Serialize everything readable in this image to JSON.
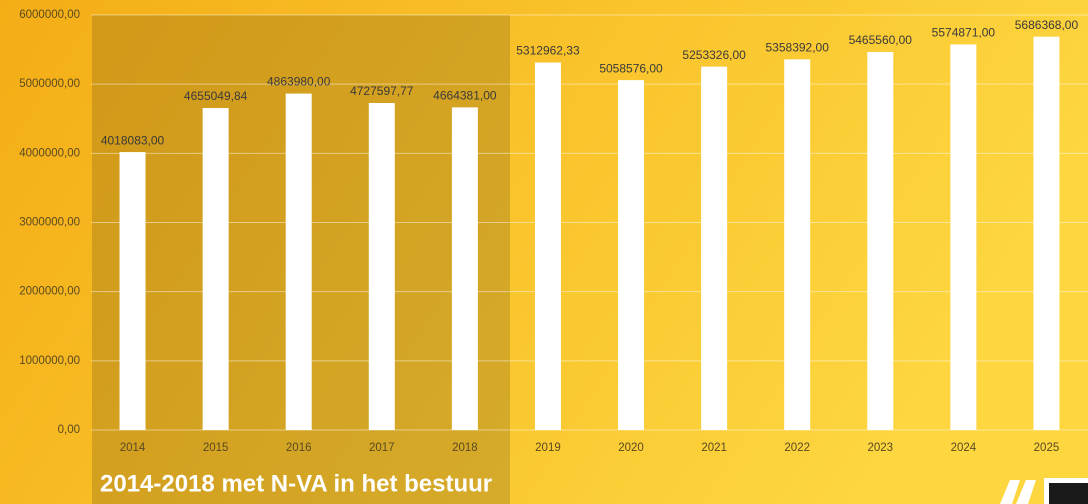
{
  "chart_data": {
    "type": "bar",
    "annotation": "2014-2018 met N-VA in het bestuur",
    "categories": [
      "2014",
      "2015",
      "2016",
      "2017",
      "2018",
      "2019",
      "2020",
      "2021",
      "2022",
      "2023",
      "2024",
      "2025"
    ],
    "values": [
      4018083,
      4655049.84,
      4863980,
      4727597.77,
      4664381,
      5312962.33,
      5058576,
      5253326,
      5358392,
      5465560,
      5574871,
      5686368
    ],
    "value_labels": [
      "4018083,00",
      "4655049,84",
      "4863980,00",
      "4727597,77",
      "4664381,00",
      "5312962,33",
      "5058576,00",
      "5253326,00",
      "5358392,00",
      "5465560,00",
      "5574871,00",
      "5686368,00"
    ],
    "color": "#ffffff",
    "ylim": [
      0,
      6000000
    ],
    "yticks": [
      {
        "value": 0,
        "label": "0,00"
      },
      {
        "value": 1000000,
        "label": "1000000,00"
      },
      {
        "value": 2000000,
        "label": "2000000,00"
      },
      {
        "value": 3000000,
        "label": "3000000,00"
      },
      {
        "value": 4000000,
        "label": "4000000,00"
      },
      {
        "value": 5000000,
        "label": "5000000,00"
      },
      {
        "value": 6000000,
        "label": "6000000,00"
      }
    ],
    "grid": true
  }
}
